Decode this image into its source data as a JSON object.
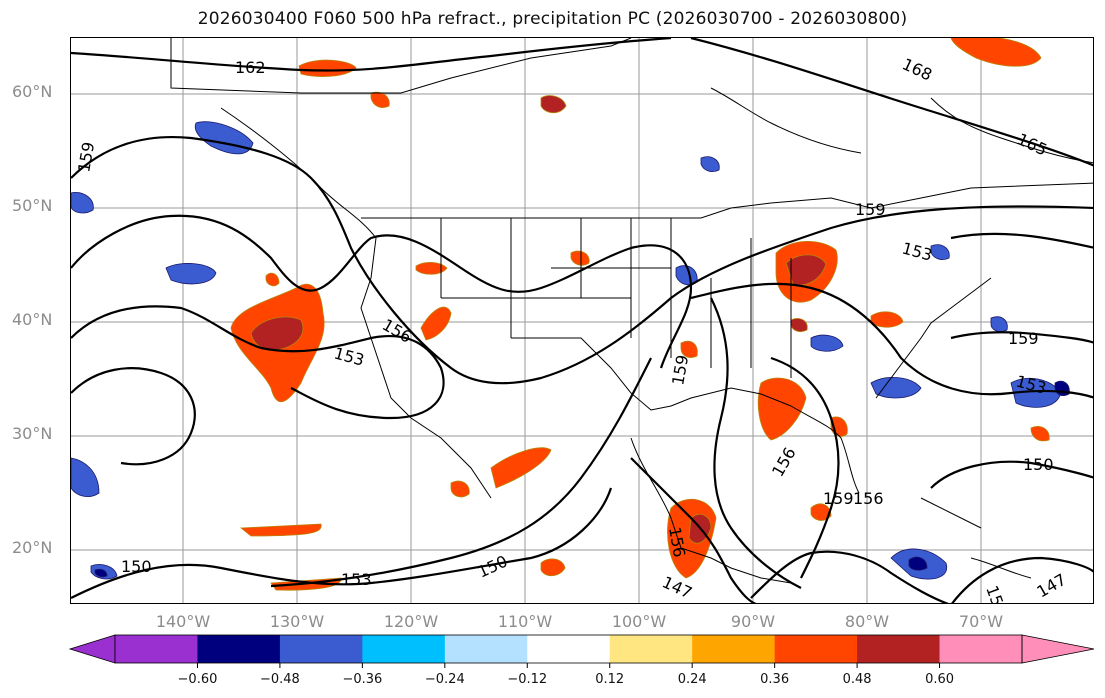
{
  "title": "2026030400 F060 500 hPa refract., precipitation PC (2026030700 - 2026030800)",
  "lat_labels": [
    "60°N",
    "50°N",
    "40°N",
    "30°N",
    "20°N"
  ],
  "lon_labels": [
    "140°W",
    "130°W",
    "120°W",
    "110°W",
    "100°W",
    "90°W",
    "80°W",
    "70°W"
  ],
  "contour_labels": [
    "162",
    "168",
    "165",
    "159",
    "159",
    "153",
    "156",
    "153",
    "159",
    "153",
    "159",
    "156",
    "159",
    "156",
    "150",
    "150",
    "153",
    "150",
    "147",
    "156",
    "147",
    "15"
  ],
  "colorbar": {
    "ticks": [
      "−0.60",
      "−0.48",
      "−0.36",
      "−0.24",
      "−0.12",
      "0.12",
      "0.24",
      "0.36",
      "0.48",
      "0.60"
    ],
    "colors": [
      "#9b30d0",
      "#00007f",
      "#3b5bd1",
      "#00bfff",
      "#b3e1ff",
      "#ffffff",
      "#ffe680",
      "#ffa500",
      "#ff4500",
      "#b22222",
      "#ff8fb8",
      "#ff8fb8"
    ]
  },
  "colors": {
    "positive_strong": "#b22222",
    "positive": "#ff4500",
    "positive_weak": "#ffa500",
    "negative": "#3b5bd1",
    "negative_strong": "#00007f",
    "contour": "#000000",
    "grid": "#9a9a9a"
  }
}
